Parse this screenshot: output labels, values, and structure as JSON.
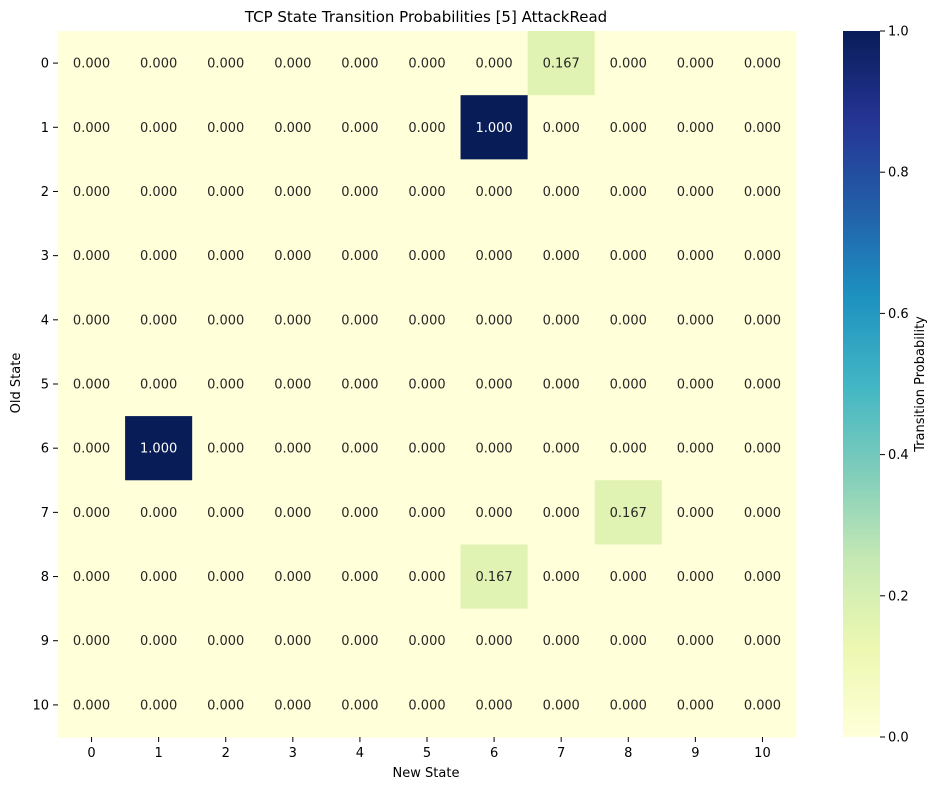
{
  "chart_data": {
    "type": "heatmap",
    "title": "TCP State Transition Probabilities [5] AttackRead",
    "xlabel": "New State",
    "ylabel": "Old State",
    "x_categories": [
      "0",
      "1",
      "2",
      "3",
      "4",
      "5",
      "6",
      "7",
      "8",
      "9",
      "10"
    ],
    "y_categories": [
      "0",
      "1",
      "2",
      "3",
      "4",
      "5",
      "6",
      "7",
      "8",
      "9",
      "10"
    ],
    "values": [
      [
        0.0,
        0.0,
        0.0,
        0.0,
        0.0,
        0.0,
        0.0,
        0.167,
        0.0,
        0.0,
        0.0
      ],
      [
        0.0,
        0.0,
        0.0,
        0.0,
        0.0,
        0.0,
        1.0,
        0.0,
        0.0,
        0.0,
        0.0
      ],
      [
        0.0,
        0.0,
        0.0,
        0.0,
        0.0,
        0.0,
        0.0,
        0.0,
        0.0,
        0.0,
        0.0
      ],
      [
        0.0,
        0.0,
        0.0,
        0.0,
        0.0,
        0.0,
        0.0,
        0.0,
        0.0,
        0.0,
        0.0
      ],
      [
        0.0,
        0.0,
        0.0,
        0.0,
        0.0,
        0.0,
        0.0,
        0.0,
        0.0,
        0.0,
        0.0
      ],
      [
        0.0,
        0.0,
        0.0,
        0.0,
        0.0,
        0.0,
        0.0,
        0.0,
        0.0,
        0.0,
        0.0
      ],
      [
        0.0,
        1.0,
        0.0,
        0.0,
        0.0,
        0.0,
        0.0,
        0.0,
        0.0,
        0.0,
        0.0
      ],
      [
        0.0,
        0.0,
        0.0,
        0.0,
        0.0,
        0.0,
        0.0,
        0.0,
        0.167,
        0.0,
        0.0
      ],
      [
        0.0,
        0.0,
        0.0,
        0.0,
        0.0,
        0.0,
        0.167,
        0.0,
        0.0,
        0.0,
        0.0
      ],
      [
        0.0,
        0.0,
        0.0,
        0.0,
        0.0,
        0.0,
        0.0,
        0.0,
        0.0,
        0.0,
        0.0
      ],
      [
        0.0,
        0.0,
        0.0,
        0.0,
        0.0,
        0.0,
        0.0,
        0.0,
        0.0,
        0.0,
        0.0
      ]
    ],
    "value_format": "0.000",
    "colorbar": {
      "label": "Transition Probability",
      "range": [
        0,
        1
      ],
      "ticks": [
        "0.0",
        "0.2",
        "0.4",
        "0.6",
        "0.8",
        "1.0"
      ],
      "colormap": "YlGnBu"
    }
  }
}
